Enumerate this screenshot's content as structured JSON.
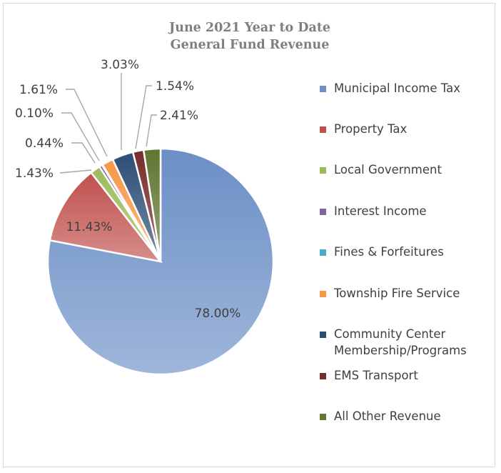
{
  "chart_data": {
    "type": "pie",
    "title": [
      "June 2021 Year to Date",
      "General Fund Revenue"
    ],
    "legend_position": "right",
    "slices": [
      {
        "label": "Municipal Income Tax",
        "value": 78.0,
        "display": "78.00%",
        "color": "#6b8fc6"
      },
      {
        "label": "Property Tax",
        "value": 11.43,
        "display": "11.43%",
        "color": "#c0504d"
      },
      {
        "label": "Local Government",
        "value": 1.43,
        "display": "1.43%",
        "color": "#9bbb59"
      },
      {
        "label": "Interest Income",
        "value": 0.44,
        "display": "0.44%",
        "color": "#8064a2"
      },
      {
        "label": "Fines & Forfeitures",
        "value": 0.1,
        "display": "0.10%",
        "color": "#4bacc6"
      },
      {
        "label": "Township Fire Service",
        "value": 1.61,
        "display": "1.61%",
        "color": "#f79646"
      },
      {
        "label": "Community Center Membership/Programs",
        "value": 3.03,
        "display": "3.03%",
        "color": "#2c4d75"
      },
      {
        "label": "EMS Transport",
        "value": 1.54,
        "display": "1.54%",
        "color": "#772c2a"
      },
      {
        "label": "All Other Revenue",
        "value": 2.41,
        "display": "2.41%",
        "color": "#5f7530"
      }
    ]
  }
}
